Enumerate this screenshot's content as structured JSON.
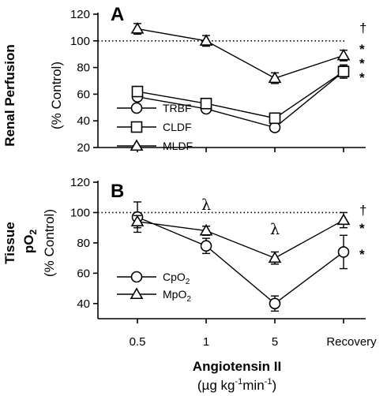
{
  "chart_data": [
    {
      "type": "line",
      "panel": "A",
      "ylabel_bold": "Renal Perfusion",
      "ylabel_unit": "(% Control)",
      "categories": [
        "0.5",
        "1",
        "5",
        "Recovery"
      ],
      "ylim": [
        20,
        120
      ],
      "yticks": [
        20,
        40,
        60,
        80,
        100,
        120
      ],
      "reference_line": 100,
      "series": [
        {
          "name": "TRBF",
          "marker": "circle",
          "values": [
            58,
            49,
            35,
            77
          ],
          "err": [
            2,
            2,
            2,
            4
          ]
        },
        {
          "name": "CLDF",
          "marker": "square",
          "values": [
            62,
            53,
            42,
            77
          ],
          "err": [
            2,
            2,
            2,
            5
          ]
        },
        {
          "name": "MLDF",
          "marker": "triangle",
          "values": [
            109,
            100,
            72,
            89
          ],
          "err": [
            4,
            4,
            4,
            4
          ]
        }
      ],
      "significance": [
        "†",
        "*",
        "*",
        "*"
      ]
    },
    {
      "type": "line",
      "panel": "B",
      "ylabel_bold_1": "Tissue",
      "ylabel_bold_2": "pO",
      "ylabel_bold_2_sub": "2",
      "ylabel_unit": "(% Control)",
      "categories": [
        "0.5",
        "1",
        "5",
        "Recovery"
      ],
      "ylim": [
        30,
        120
      ],
      "yticks": [
        40,
        60,
        80,
        100,
        120
      ],
      "reference_line": 100,
      "series": [
        {
          "name": "CpO",
          "name_sub": "2",
          "marker": "circle",
          "values": [
            97,
            78,
            40,
            74
          ],
          "err": [
            10,
            5,
            5,
            11
          ]
        },
        {
          "name": "MpO",
          "name_sub": "2",
          "marker": "triangle",
          "values": [
            94,
            88,
            70,
            95
          ],
          "err": [
            4,
            3,
            4,
            5
          ]
        }
      ],
      "annotations": [
        "λ",
        "λ"
      ],
      "significance": [
        "†",
        "*",
        "*"
      ]
    }
  ],
  "xaxis": {
    "tick_labels": [
      "0.5",
      "1",
      "5",
      "Recovery"
    ],
    "label": "Angiotensin II",
    "unit_main": "(µg kg",
    "unit_sup1": "-1",
    "unit_mid": "min",
    "unit_sup2": "-1",
    "unit_end": ")"
  }
}
